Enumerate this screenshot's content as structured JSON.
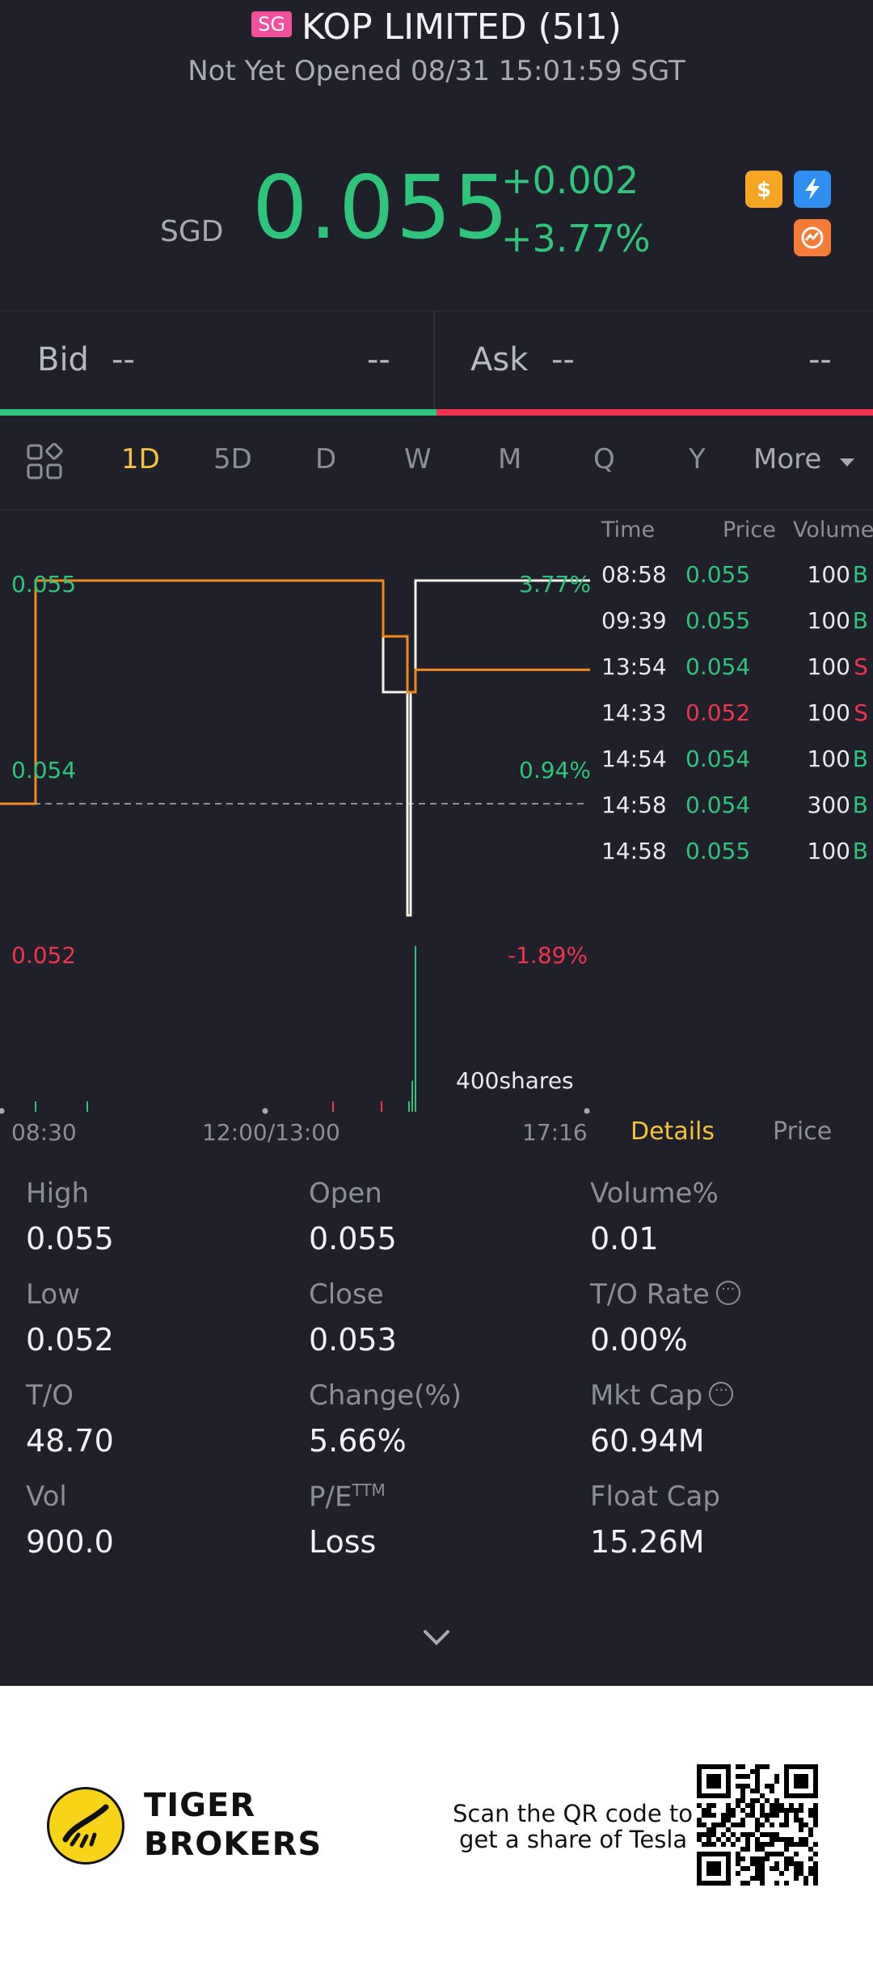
{
  "header": {
    "market_badge": "SG",
    "title": "KOP LIMITED (5I1)",
    "status": "Not Yet Opened 08/31 15:01:59 SGT"
  },
  "quote": {
    "currency": "SGD",
    "price": "0.055",
    "change": "+0.002",
    "change_pct": "+3.77%"
  },
  "badges": [
    "dollar-icon",
    "bolt-icon",
    "exchange-icon"
  ],
  "bid_ask": {
    "bid_label": "Bid",
    "bid_price": "--",
    "bid_size": "--",
    "ask_label": "Ask",
    "ask_price": "--",
    "ask_size": "--"
  },
  "tabs": [
    "1D",
    "5D",
    "D",
    "W",
    "M",
    "Q",
    "Y",
    "More"
  ],
  "active_tab": "1D",
  "chart_labels": {
    "left_top": "0.055",
    "left_mid": "0.054",
    "left_bottom": "0.052",
    "right_top": "3.77%",
    "right_mid": "0.94%",
    "right_bottom": "-1.89%",
    "volume_label": "400shares",
    "time_start": "08:30",
    "time_mid": "12:00/13:00",
    "time_end": "17:16"
  },
  "chart_data": {
    "type": "line",
    "title": "",
    "xlabel": "",
    "ylabel": "",
    "ylim": [
      0.052,
      0.055
    ],
    "reference_close": 0.053,
    "x": [
      "08:30",
      "08:58",
      "12:00/13:00",
      "13:54",
      "14:33",
      "14:54",
      "14:58",
      "17:16"
    ],
    "series": [
      {
        "values": [
          0.053,
          0.055,
          0.055,
          0.054,
          0.052,
          0.054,
          0.055,
          0.055
        ]
      },
      {
        "values": [
          0.053,
          0.055,
          0.055,
          0.0545,
          0.054,
          0.054,
          0.0542,
          0.0542
        ]
      }
    ],
    "volume_max": 400,
    "grid": false
  },
  "trades": {
    "headers": {
      "time": "Time",
      "price": "Price",
      "volume": "Volume"
    },
    "rows": [
      {
        "time": "08:58",
        "price": "0.055",
        "vol": "100",
        "side": "B",
        "dir": "up"
      },
      {
        "time": "09:39",
        "price": "0.055",
        "vol": "100",
        "side": "B",
        "dir": "up"
      },
      {
        "time": "13:54",
        "price": "0.054",
        "vol": "100",
        "side": "S",
        "dir": "up"
      },
      {
        "time": "14:33",
        "price": "0.052",
        "vol": "100",
        "side": "S",
        "dir": "down"
      },
      {
        "time": "14:54",
        "price": "0.054",
        "vol": "100",
        "side": "B",
        "dir": "up"
      },
      {
        "time": "14:58",
        "price": "0.054",
        "vol": "300",
        "side": "B",
        "dir": "up"
      },
      {
        "time": "14:58",
        "price": "0.055",
        "vol": "100",
        "side": "B",
        "dir": "up"
      }
    ]
  },
  "detail_tabs": {
    "details": "Details",
    "price": "Price"
  },
  "stats": [
    [
      {
        "label": "High",
        "value": "0.055"
      },
      {
        "label": "Open",
        "value": "0.055"
      },
      {
        "label": "Volume%",
        "value": "0.01"
      }
    ],
    [
      {
        "label": "Low",
        "value": "0.052"
      },
      {
        "label": "Close",
        "value": "0.053"
      },
      {
        "label": "T/O Rate",
        "value": "0.00%"
      }
    ],
    [
      {
        "label": "T/O",
        "value": "48.70"
      },
      {
        "label": "Change(%)",
        "value": "5.66%"
      },
      {
        "label": "Mkt Cap",
        "value": "60.94M"
      }
    ],
    [
      {
        "label": "Vol",
        "value": "900.0"
      },
      {
        "label": "P/E",
        "value": "Loss"
      },
      {
        "label": "Float Cap",
        "value": "15.26M"
      }
    ]
  ],
  "pe_superscript": "TTM",
  "footer": {
    "brand_line1": "TIGER",
    "brand_line2": "BROKERS",
    "scan_line1": "Scan the QR code to",
    "scan_line2": "get a share of Tesla"
  },
  "colors": {
    "up": "#2fc47c",
    "down": "#f0344d",
    "accent": "#f5c33b",
    "background": "#1f2029"
  }
}
